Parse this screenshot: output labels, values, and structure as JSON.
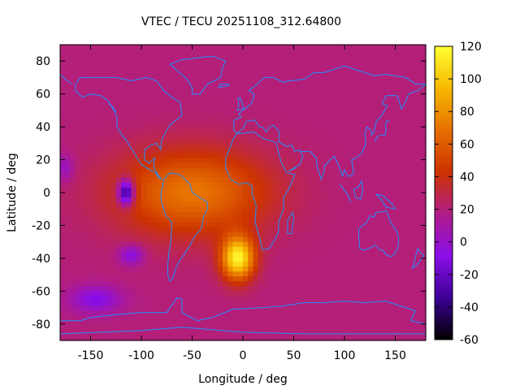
{
  "chart_data": {
    "type": "heatmap",
    "title": "VTEC / TECU 20251108_312.64800",
    "xlabel": "Longitude / deg",
    "ylabel": "Latitude / deg",
    "xlim": [
      -180,
      180
    ],
    "ylim": [
      -90,
      90
    ],
    "x_ticks": [
      -150,
      -100,
      -50,
      0,
      50,
      100,
      150
    ],
    "y_ticks": [
      80,
      60,
      40,
      20,
      0,
      -20,
      -40,
      -60,
      -80
    ],
    "colorbar": {
      "range": [
        -60,
        120
      ],
      "ticks": [
        120,
        100,
        80,
        60,
        40,
        20,
        0,
        -20,
        -40,
        -60
      ],
      "colormap": [
        "#000000",
        "#3c0096",
        "#8a0ee8",
        "#b01c88",
        "#cc3300",
        "#e67000",
        "#f7b800",
        "#ffff33"
      ]
    },
    "background_level": 20,
    "features": [
      {
        "name": "equatorial anomaly",
        "lon": -50,
        "lat": 0,
        "value": 70,
        "sx": 75,
        "sy": 26
      },
      {
        "name": "southern crest",
        "lon": -5,
        "lat": -40,
        "value": 115,
        "sx": 16,
        "sy": 13
      },
      {
        "name": "depletion",
        "lon": -115,
        "lat": 0,
        "value": -55,
        "sx": 8,
        "sy": 8
      },
      {
        "name": "depletion",
        "lon": -110,
        "lat": -38,
        "value": -10,
        "sx": 12,
        "sy": 6
      },
      {
        "name": "depletion",
        "lon": -145,
        "lat": -65,
        "value": -10,
        "sx": 25,
        "sy": 8
      },
      {
        "name": "depletion",
        "lon": -175,
        "lat": 15,
        "value": 0,
        "sx": 8,
        "sy": 8
      }
    ],
    "coastline_color": "#1e90ff"
  }
}
